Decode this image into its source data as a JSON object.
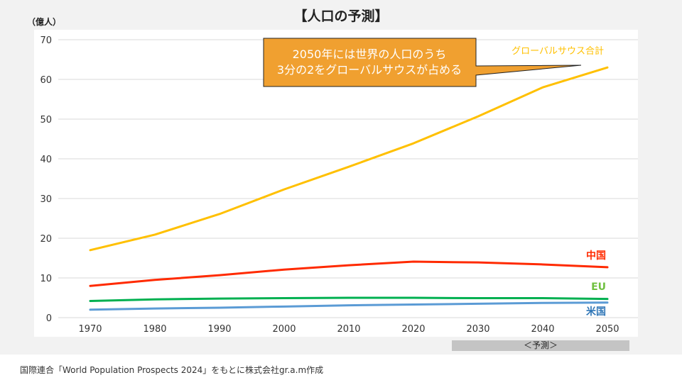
{
  "chart_data": {
    "type": "line",
    "title": "【人口の予測】",
    "ylabel": "（億人）",
    "xlabel": "",
    "x": [
      1970,
      1980,
      1990,
      2000,
      2010,
      2020,
      2030,
      2040,
      2050
    ],
    "ylim": [
      0,
      70
    ],
    "yticks": [
      0,
      10,
      20,
      30,
      40,
      50,
      60,
      70
    ],
    "grid": true,
    "series": [
      {
        "name": "グローバルサウス合計",
        "color": "#ffc000",
        "values": [
          17.0,
          20.9,
          26.1,
          32.3,
          38.0,
          43.9,
          50.7,
          58.0,
          63.0
        ]
      },
      {
        "name": "中国",
        "color": "#ff2a00",
        "label_color": "#ff2a00",
        "values": [
          8.0,
          9.5,
          10.7,
          12.1,
          13.2,
          14.1,
          13.9,
          13.4,
          12.7
        ]
      },
      {
        "name": "EU",
        "color": "#00b050",
        "label_color": "#70c040",
        "values": [
          4.2,
          4.6,
          4.8,
          4.9,
          5.0,
          5.0,
          4.9,
          4.9,
          4.7
        ]
      },
      {
        "name": "米国",
        "color": "#5b9bd5",
        "label_color": "#2e75b6",
        "values": [
          2.0,
          2.3,
          2.5,
          2.8,
          3.1,
          3.3,
          3.5,
          3.7,
          3.8
        ]
      }
    ],
    "annotation": {
      "lines": [
        "2050年には世界の人口のうち",
        "3分の2をグローバルサウスが占める"
      ],
      "fill": "#f0a030"
    },
    "forecast_label": "＜予測＞"
  },
  "source": "国際連合「World Population Prospects 2024」をもとに株式会社gr.a.m作成"
}
